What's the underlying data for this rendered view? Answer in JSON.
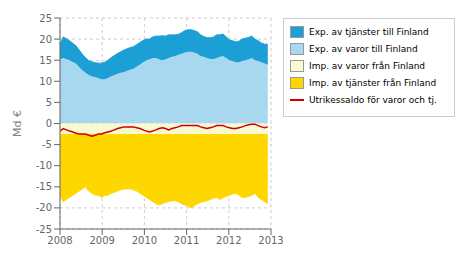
{
  "chart_data": {
    "type": "area",
    "title": "",
    "ylabel": "Md €",
    "stacked": true,
    "grid": true,
    "legend": "right",
    "xlim": [
      2008,
      2013
    ],
    "xticks": [
      2008,
      2009,
      2010,
      2011,
      2012,
      2013
    ],
    "ylim": [
      -25,
      25
    ],
    "yticks": [
      -25,
      -20,
      -15,
      -10,
      -5,
      0,
      5,
      10,
      15,
      20,
      25
    ],
    "x": [
      2008,
      2008.0758,
      2008.1515,
      2008.2273,
      2008.303,
      2008.3788,
      2008.4545,
      2008.5303,
      2008.6061,
      2008.6818,
      2008.7576,
      2008.8333,
      2008.9091,
      2008.9848,
      2009.0606,
      2009.1364,
      2009.2121,
      2009.2879,
      2009.3636,
      2009.4394,
      2009.5152,
      2009.5909,
      2009.6667,
      2009.7424,
      2009.8182,
      2009.8939,
      2009.9697,
      2010.0455,
      2010.1212,
      2010.197,
      2010.2727,
      2010.3485,
      2010.4242,
      2010.5,
      2010.5758,
      2010.6515,
      2010.7273,
      2010.803,
      2010.8788,
      2010.9545,
      2011.0303,
      2011.1061,
      2011.1818,
      2011.2576,
      2011.3333,
      2011.4091,
      2011.4848,
      2011.5606,
      2011.6364,
      2011.7121,
      2011.7879,
      2011.8636,
      2011.9394,
      2012.0152,
      2012.0909,
      2012.1667,
      2012.2424,
      2012.3182,
      2012.3939,
      2012.4697,
      2012.5455,
      2012.6212,
      2012.697,
      2012.7727,
      2012.8485,
      2012.9242
    ],
    "series": [
      {
        "name": "Exp. av varor till Finland",
        "type": "area",
        "color": "#A8D8F0",
        "values": [
          15.2,
          15.5,
          15.3,
          15.0,
          14.6,
          14.2,
          13.4,
          12.6,
          12.0,
          11.5,
          11.2,
          11.0,
          10.8,
          10.5,
          10.5,
          10.8,
          11.2,
          11.5,
          11.8,
          12.0,
          12.2,
          12.5,
          12.8,
          13.0,
          13.5,
          14.0,
          14.5,
          15.0,
          15.2,
          15.5,
          15.5,
          15.2,
          15.0,
          15.2,
          15.5,
          15.8,
          16.0,
          16.3,
          16.5,
          16.8,
          17.0,
          17.0,
          16.8,
          16.5,
          16.0,
          15.8,
          15.5,
          15.3,
          15.3,
          15.5,
          15.8,
          16.0,
          15.5,
          15.0,
          14.8,
          14.5,
          14.5,
          14.8,
          15.0,
          15.2,
          15.5,
          15.0,
          14.8,
          14.5,
          14.2,
          14.0
        ]
      },
      {
        "name": "Exp. av tjänster till Finland",
        "type": "area",
        "color": "#1B9FD4",
        "values": [
          3.5,
          5.0,
          4.8,
          4.6,
          4.4,
          4.2,
          4.0,
          3.8,
          3.6,
          3.4,
          3.4,
          3.4,
          3.5,
          3.8,
          4.0,
          4.2,
          4.4,
          4.6,
          4.8,
          5.0,
          5.2,
          5.2,
          5.2,
          5.2,
          5.2,
          5.2,
          5.2,
          5.0,
          4.8,
          5.0,
          5.2,
          5.5,
          5.8,
          5.5,
          5.5,
          5.2,
          5.0,
          4.8,
          5.0,
          5.2,
          5.2,
          5.2,
          5.2,
          5.2,
          5.0,
          4.8,
          4.8,
          5.0,
          5.2,
          5.5,
          5.2,
          5.2,
          5.0,
          4.8,
          4.8,
          4.8,
          5.0,
          5.2,
          5.2,
          5.2,
          5.2,
          5.0,
          4.8,
          4.6,
          4.6,
          4.8
        ]
      },
      {
        "name": "Imp. av varor från Finland",
        "type": "area",
        "color": "#FAFAD2",
        "values": [
          -2.5,
          -2.5,
          -2.5,
          -2.5,
          -2.5,
          -2.5,
          -2.5,
          -2.5,
          -2.5,
          -2.5,
          -2.5,
          -2.5,
          -2.5,
          -2.5,
          -2.5,
          -2.5,
          -2.5,
          -2.5,
          -2.5,
          -2.5,
          -2.5,
          -2.5,
          -2.5,
          -2.5,
          -2.5,
          -2.5,
          -2.5,
          -2.5,
          -2.5,
          -2.5,
          -2.5,
          -2.5,
          -2.5,
          -2.5,
          -2.5,
          -2.5,
          -2.5,
          -2.5,
          -2.5,
          -2.5,
          -2.5,
          -2.5,
          -2.5,
          -2.5,
          -2.5,
          -2.5,
          -2.5,
          -2.5,
          -2.5,
          -2.5,
          -2.5,
          -2.5,
          -2.5,
          -2.5,
          -2.5,
          -2.5,
          -2.5,
          -2.5,
          -2.5,
          -2.5,
          -2.5,
          -2.5,
          -2.5,
          -2.5,
          -2.5,
          -2.5
        ]
      },
      {
        "name": "Imp. av tjänster från Finland",
        "type": "area",
        "color": "#FFD700",
        "values": [
          -14.5,
          -16.0,
          -15.5,
          -15.0,
          -14.5,
          -14.0,
          -13.5,
          -13.0,
          -12.5,
          -13.5,
          -14.0,
          -14.5,
          -14.5,
          -15.0,
          -14.5,
          -14.5,
          -14.0,
          -13.8,
          -13.5,
          -13.2,
          -13.0,
          -13.0,
          -13.0,
          -13.2,
          -13.5,
          -14.0,
          -14.5,
          -15.0,
          -15.5,
          -16.0,
          -16.5,
          -16.8,
          -16.5,
          -16.2,
          -16.0,
          -15.8,
          -15.8,
          -16.0,
          -16.5,
          -16.8,
          -17.0,
          -17.5,
          -17.0,
          -16.5,
          -16.2,
          -16.0,
          -15.8,
          -15.5,
          -15.2,
          -15.0,
          -15.5,
          -15.0,
          -14.8,
          -14.5,
          -14.2,
          -14.0,
          -14.5,
          -15.0,
          -15.0,
          -14.8,
          -14.5,
          -14.0,
          -15.0,
          -15.5,
          -16.0,
          -16.5
        ]
      },
      {
        "name": "Utrikessaldo för varor och tj.",
        "type": "line",
        "color": "#CC0000",
        "values": [
          -1.8,
          -1.2,
          -1.5,
          -1.8,
          -2.0,
          -2.3,
          -2.5,
          -2.5,
          -2.5,
          -2.8,
          -3.0,
          -2.8,
          -2.5,
          -2.5,
          -2.2,
          -2.0,
          -1.8,
          -1.5,
          -1.2,
          -1.0,
          -0.8,
          -0.8,
          -0.8,
          -0.8,
          -1.0,
          -1.2,
          -1.5,
          -1.8,
          -2.0,
          -1.8,
          -1.5,
          -1.2,
          -1.0,
          -1.2,
          -1.5,
          -1.2,
          -1.0,
          -0.8,
          -0.5,
          -0.5,
          -0.5,
          -0.5,
          -0.5,
          -0.5,
          -0.8,
          -1.0,
          -1.2,
          -1.0,
          -0.8,
          -0.5,
          -0.5,
          -0.5,
          -0.8,
          -1.0,
          -1.2,
          -1.2,
          -1.0,
          -0.8,
          -0.5,
          -0.3,
          -0.2,
          -0.2,
          -0.5,
          -0.8,
          -1.0,
          -0.8
        ]
      }
    ]
  }
}
